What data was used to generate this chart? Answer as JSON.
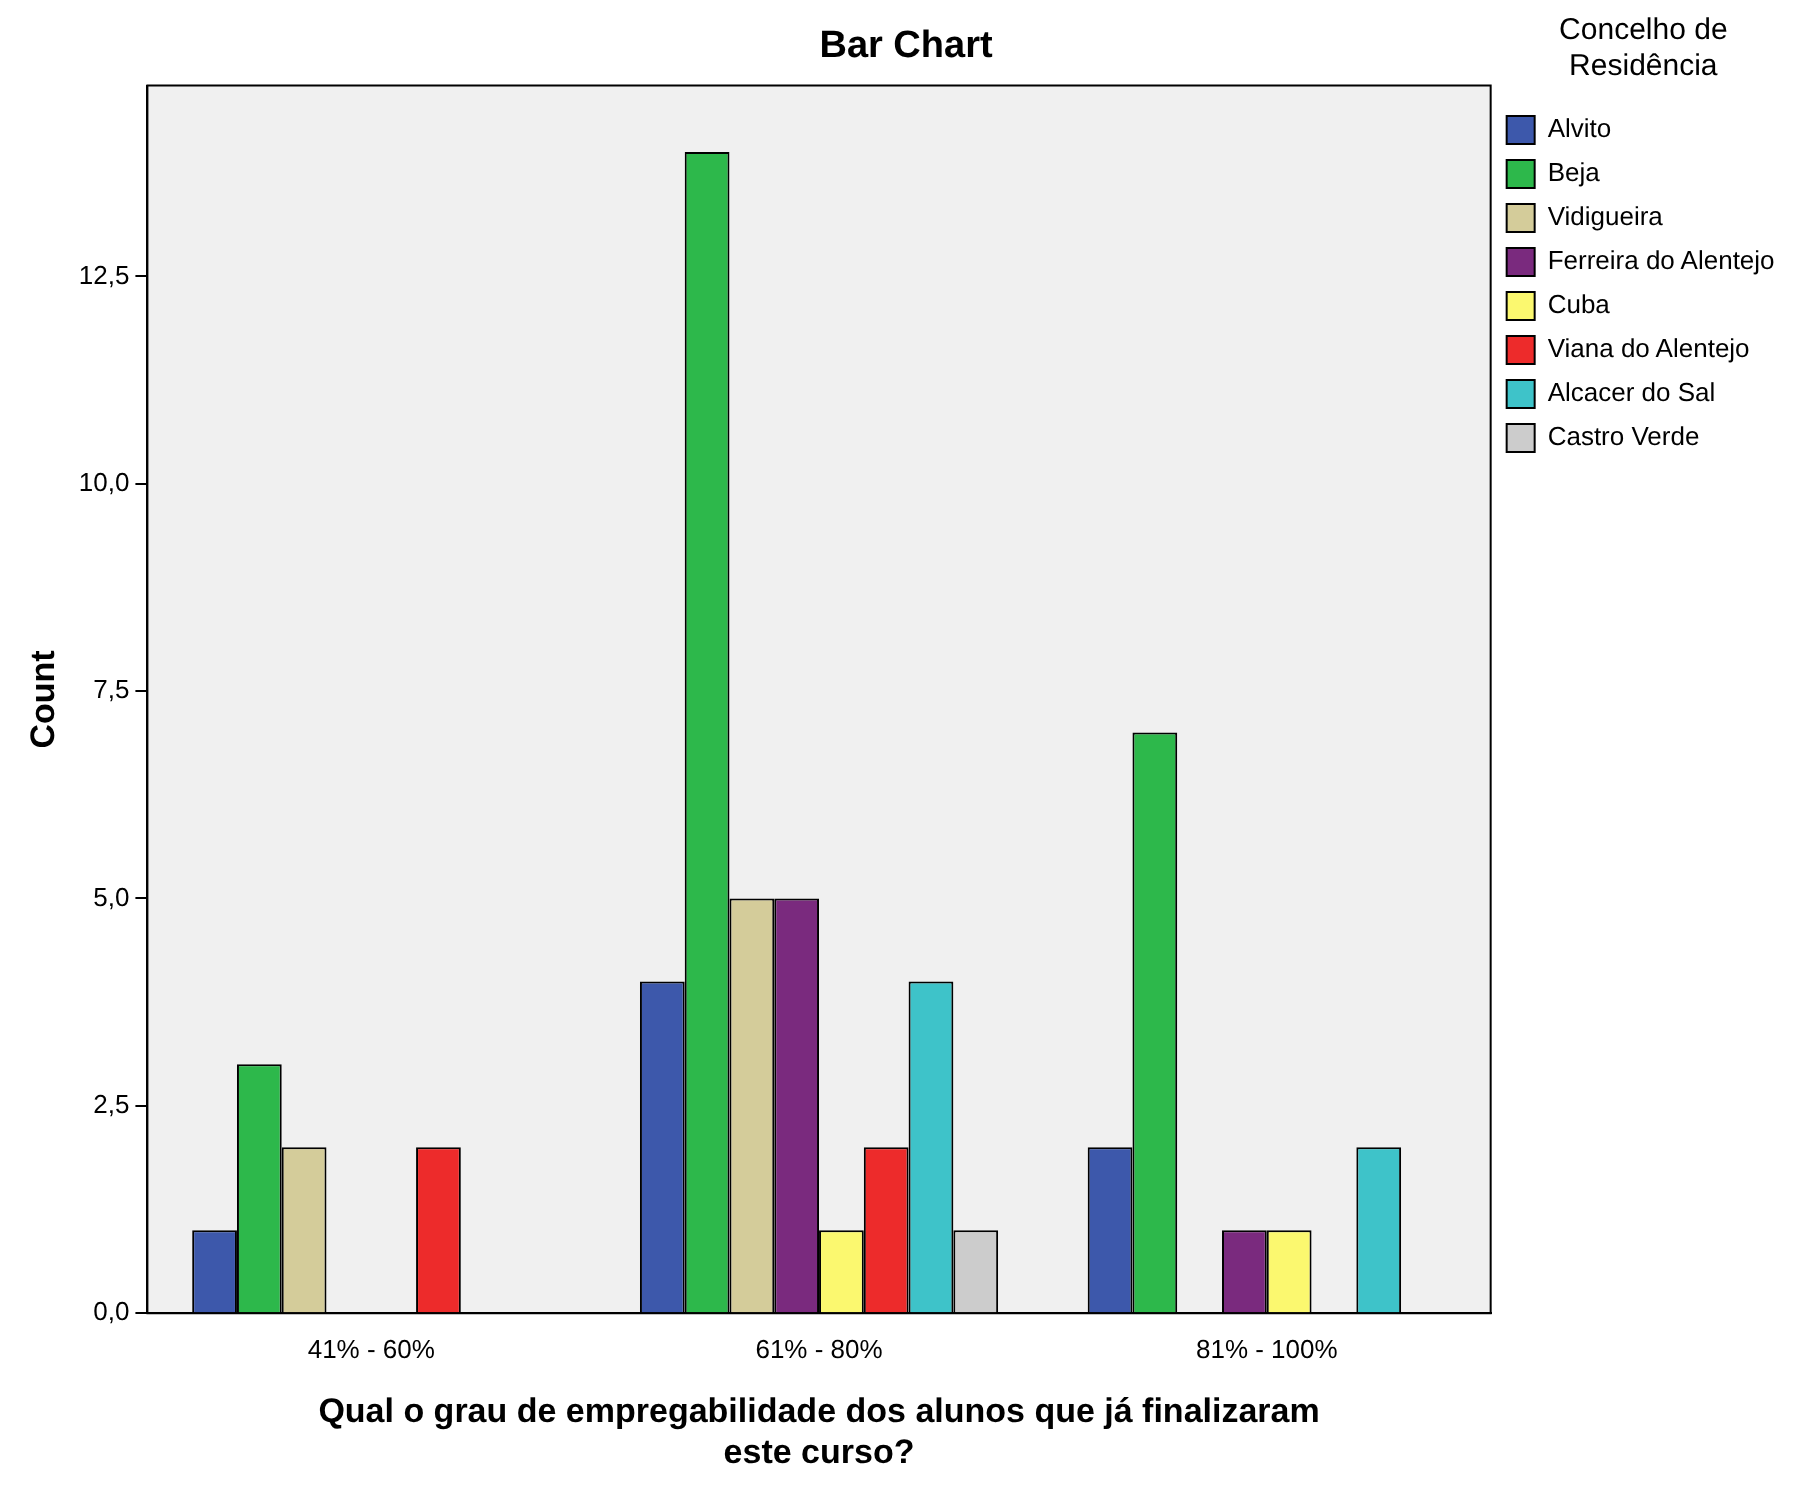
{
  "chart_data": {
    "type": "bar",
    "title": "Bar Chart",
    "xlabel": "Qual o grau de empregabilidade dos alunos que já finalizaram este curso?",
    "ylabel": "Count",
    "legend_title": "Concelho de Residência",
    "legend": "right",
    "categories": [
      "41% - 60%",
      "61% - 80%",
      "81% - 100%"
    ],
    "ylim": [
      0,
      14.8
    ],
    "yticks": [
      {
        "value": 0,
        "label": "0,0"
      },
      {
        "value": 2.5,
        "label": "2,5"
      },
      {
        "value": 5,
        "label": "5,0"
      },
      {
        "value": 7.5,
        "label": "7,5"
      },
      {
        "value": 10,
        "label": "10,0"
      },
      {
        "value": 12.5,
        "label": "12,5"
      }
    ],
    "grid": false,
    "series": [
      {
        "name": "Alvito",
        "color": "#3d58ab",
        "values": [
          1,
          4,
          2
        ]
      },
      {
        "name": "Beja",
        "color": "#2db84b",
        "values": [
          3,
          14,
          7
        ]
      },
      {
        "name": "Vidigueira",
        "color": "#d4cc9a",
        "values": [
          2,
          5,
          null
        ]
      },
      {
        "name": "Ferreira do Alentejo",
        "color": "#7a2a7e",
        "values": [
          null,
          5,
          1
        ]
      },
      {
        "name": "Cuba",
        "color": "#fbf86f",
        "values": [
          null,
          1,
          1
        ]
      },
      {
        "name": "Viana do Alentejo",
        "color": "#ed2b2b",
        "values": [
          2,
          2,
          null
        ]
      },
      {
        "name": "Alcacer do Sal",
        "color": "#3ec3c9",
        "values": [
          null,
          4,
          2
        ]
      },
      {
        "name": "Castro Verde",
        "color": "#cccccc",
        "values": [
          null,
          1,
          null
        ]
      }
    ]
  }
}
